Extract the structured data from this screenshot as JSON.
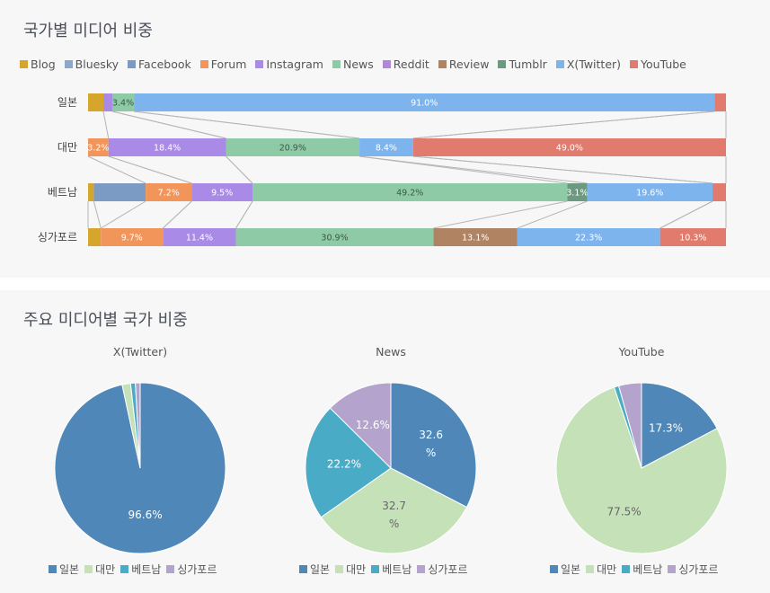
{
  "top_panel": {
    "title": "국가별 미디어 비중"
  },
  "bottom_panel": {
    "title": "주요 미디어별 국가 비중"
  },
  "media_colors": {
    "Blog": "#d6a62c",
    "Bluesky": "#8ca7c9",
    "Facebook": "#7b9ac4",
    "Forum": "#f2955a",
    "Instagram": "#a98ae6",
    "News": "#8ecaa6",
    "Reddit": "#b187d6",
    "Review": "#b08462",
    "Tumblr": "#6c9a80",
    "X(Twitter)": "#7eb4ee",
    "YouTube": "#e07b6e"
  },
  "country_colors": {
    "일본": "#4f88b8",
    "대만": "#c5e1b8",
    "베트남": "#4aabc7",
    "싱가포르": "#b4a3cc"
  },
  "chart_data": [
    {
      "type": "bar",
      "stacked": true,
      "orientation": "horizontal",
      "normalized": true,
      "title": "국가별 미디어 비중",
      "legend_position": "top-left",
      "legend": [
        "Blog",
        "Bluesky",
        "Facebook",
        "Forum",
        "Instagram",
        "News",
        "Reddit",
        "Review",
        "Tumblr",
        "X(Twitter)",
        "YouTube"
      ],
      "categories": [
        "일본",
        "대만",
        "베트남",
        "싱가포르"
      ],
      "rows": [
        {
          "country": "일본",
          "segments": [
            {
              "media": "Blog",
              "value": 2.4,
              "label": ""
            },
            {
              "media": "Instagram",
              "value": 1.4,
              "label": ""
            },
            {
              "media": "News",
              "value": 3.4,
              "label": "3.4%"
            },
            {
              "media": "X(Twitter)",
              "value": 91.0,
              "label": "91.0%"
            },
            {
              "media": "YouTube",
              "value": 1.8,
              "label": ""
            }
          ]
        },
        {
          "country": "대만",
          "segments": [
            {
              "media": "Forum",
              "value": 3.2,
              "label": "3.2%"
            },
            {
              "media": "Instagram",
              "value": 18.4,
              "label": "18.4%"
            },
            {
              "media": "News",
              "value": 20.9,
              "label": "20.9%"
            },
            {
              "media": "X(Twitter)",
              "value": 8.4,
              "label": "8.4%"
            },
            {
              "media": "YouTube",
              "value": 49.0,
              "label": "49.0%"
            }
          ]
        },
        {
          "country": "베트남",
          "segments": [
            {
              "media": "Blog",
              "value": 0.9,
              "label": ""
            },
            {
              "media": "Facebook",
              "value": 8.1,
              "label": ""
            },
            {
              "media": "Forum",
              "value": 7.2,
              "label": "7.2%"
            },
            {
              "media": "Instagram",
              "value": 9.5,
              "label": "9.5%"
            },
            {
              "media": "News",
              "value": 49.2,
              "label": "49.2%"
            },
            {
              "media": "Tumblr",
              "value": 3.1,
              "label": "3.1%"
            },
            {
              "media": "X(Twitter)",
              "value": 19.6,
              "label": "19.6%"
            },
            {
              "media": "YouTube",
              "value": 2.1,
              "label": ""
            }
          ]
        },
        {
          "country": "싱가포르",
          "segments": [
            {
              "media": "Blog",
              "value": 2.0,
              "label": ""
            },
            {
              "media": "Forum",
              "value": 9.7,
              "label": "9.7%"
            },
            {
              "media": "Instagram",
              "value": 11.4,
              "label": "11.4%"
            },
            {
              "media": "News",
              "value": 30.9,
              "label": "30.9%"
            },
            {
              "media": "Review",
              "value": 13.1,
              "label": "13.1%"
            },
            {
              "media": "X(Twitter)",
              "value": 22.3,
              "label": "22.3%"
            },
            {
              "media": "YouTube",
              "value": 10.3,
              "label": "10.3%"
            }
          ]
        }
      ]
    },
    {
      "type": "pie",
      "title": "X(Twitter)",
      "legend_position": "bottom",
      "slices": [
        {
          "label": "일본",
          "value": 96.6,
          "text": "96.6%"
        },
        {
          "label": "대만",
          "value": 1.6,
          "text": ""
        },
        {
          "label": "베트남",
          "value": 0.9,
          "text": ""
        },
        {
          "label": "싱가포르",
          "value": 0.9,
          "text": ""
        }
      ]
    },
    {
      "type": "pie",
      "title": "News",
      "legend_position": "bottom",
      "slices": [
        {
          "label": "일본",
          "value": 32.6,
          "text_lines": [
            "32.6",
            "%"
          ]
        },
        {
          "label": "대만",
          "value": 32.7,
          "text_lines": [
            "32.7",
            "%"
          ]
        },
        {
          "label": "베트남",
          "value": 22.2,
          "text_lines": [
            "22.2%"
          ]
        },
        {
          "label": "싱가포르",
          "value": 12.6,
          "text_lines": [
            "12.6%"
          ]
        }
      ]
    },
    {
      "type": "pie",
      "title": "YouTube",
      "legend_position": "bottom",
      "slices": [
        {
          "label": "일본",
          "value": 17.3,
          "text": "17.3%"
        },
        {
          "label": "대만",
          "value": 77.5,
          "text": "77.5%"
        },
        {
          "label": "베트남",
          "value": 0.9,
          "text": ""
        },
        {
          "label": "싱가포르",
          "value": 4.3,
          "text": ""
        }
      ]
    }
  ]
}
